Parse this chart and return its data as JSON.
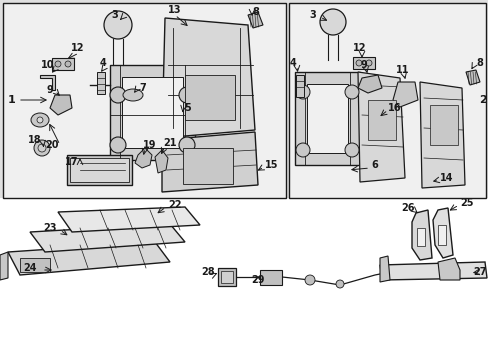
{
  "bg_color": "#e0e0e0",
  "box_color": "#f0f0f0",
  "line_color": "#1a1a1a",
  "label_color": "#1a1a1a",
  "fig_w": 4.89,
  "fig_h": 3.6,
  "dpi": 100
}
